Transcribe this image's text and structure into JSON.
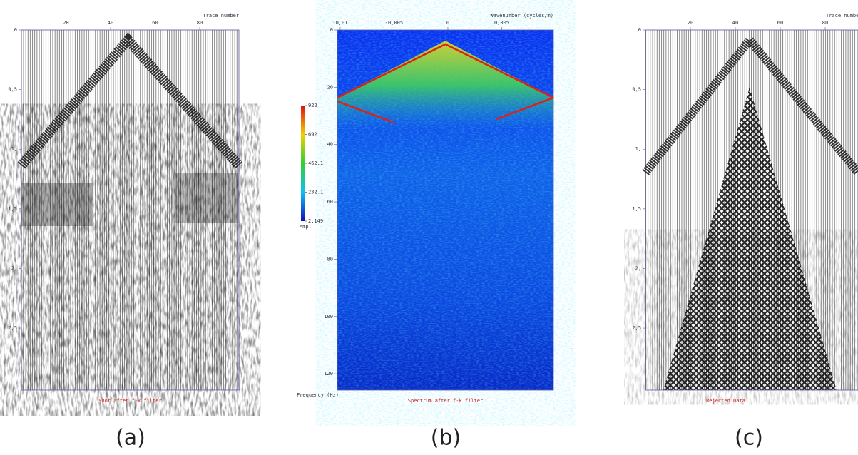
{
  "chart_data": [
    {
      "type": "seismic",
      "x_label": "Trace number",
      "caption": "Shot after f-k filter",
      "panel_label": "(a)",
      "xlim": [
        0,
        97.6
      ],
      "xticks": [
        20,
        40,
        60,
        80
      ],
      "ylim": [
        0,
        3.02
      ],
      "yticks": [
        0,
        {
          "value": 0.5,
          "label": "0,5"
        },
        {
          "value": 1,
          "label": "1,"
        },
        {
          "value": 1.5,
          "label": "1,5"
        },
        {
          "value": 2,
          "label": "2,"
        },
        {
          "value": 2.5,
          "label": "2,5"
        }
      ]
    },
    {
      "type": "spectrum",
      "x_label": "Wavenumber (cycles/m)",
      "y_label": "Frequency (Hz)",
      "caption": "Spectrum after f-k filter",
      "panel_label": "(b)",
      "xlim": [
        -0.01026,
        0.0098
      ],
      "xticks": [
        {
          "value": -0.01,
          "label": "-0,01"
        },
        {
          "value": -0.005,
          "label": "-0,005"
        },
        0,
        {
          "value": 0.005,
          "label": "0,005"
        }
      ],
      "ylim": [
        0,
        125.7
      ],
      "yticks": [
        0,
        20,
        40,
        60,
        80,
        100,
        120
      ],
      "colorbar": {
        "label": "Amp.",
        "lim": [
          2.149,
          922
        ],
        "ticks": [
          922,
          692,
          462.1,
          232.1,
          2.149
        ]
      }
    },
    {
      "type": "seismic",
      "x_label": "Trace number",
      "caption": "Rejected Data",
      "panel_label": "(c)",
      "xlim": [
        0,
        94.6
      ],
      "xticks": [
        20,
        40,
        60,
        80
      ],
      "ylim": [
        0,
        3.02
      ],
      "yticks": [
        0,
        {
          "value": 0.5,
          "label": "0,5"
        },
        {
          "value": 1,
          "label": "1,"
        },
        {
          "value": 1.5,
          "label": "1,5"
        },
        {
          "value": 2,
          "label": "2,"
        },
        {
          "value": 2.5,
          "label": "2,5"
        }
      ]
    }
  ]
}
